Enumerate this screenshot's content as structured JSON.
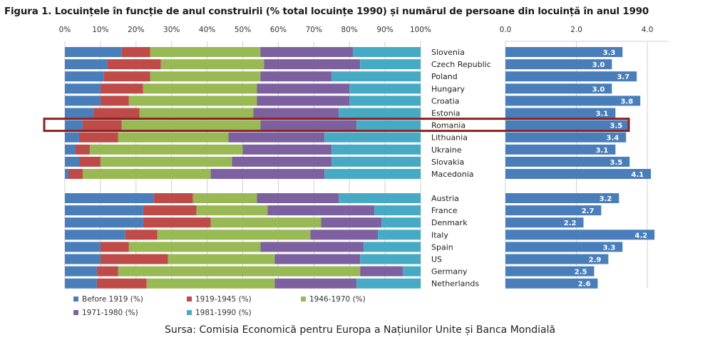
{
  "title": "Figura 1. Locuințele în funcție de anul construirii (% total locuințe 1990) și numărul de persoane din locuință în anul 1990",
  "source": "Sursa: Comisia Economică pentru Europa a Națiunilor Unite și Banca Mondială",
  "chart_data": [
    {
      "type": "bar",
      "orientation": "horizontal",
      "stacked": true,
      "title": "Locuințele în funcție de anul construirii (% total locuințe 1990)",
      "x_ticks": [
        "0%",
        "10%",
        "20%",
        "30%",
        "40%",
        "50%",
        "60%",
        "70%",
        "80%",
        "90%",
        "100%"
      ],
      "xlim": [
        0,
        100
      ],
      "grid": true,
      "categories": [
        "Slovenia",
        "Czech Republic",
        "Poland",
        "Hungary",
        "Croatia",
        "Estonia",
        "Romania",
        "Lithuania",
        "Ukraine",
        "Slovakia",
        "Macedonia",
        "Austria",
        "France",
        "Denmark",
        "Italy",
        "Spain",
        "US",
        "Germany",
        "Netherlands"
      ],
      "groups": [
        {
          "categories": [
            "Slovenia",
            "Czech Republic",
            "Poland",
            "Hungary",
            "Croatia",
            "Estonia",
            "Romania",
            "Lithuania",
            "Ukraine",
            "Slovakia",
            "Macedonia"
          ]
        },
        {
          "categories": [
            "Austria",
            "France",
            "Denmark",
            "Italy",
            "Spain",
            "US",
            "Germany",
            "Netherlands"
          ]
        }
      ],
      "highlight": "Romania",
      "series": [
        {
          "name": "Before 1919 (%)",
          "color": "#4a7ebb",
          "values": [
            16,
            12,
            11,
            10,
            10,
            8,
            5,
            4,
            3,
            4,
            1,
            25,
            22,
            22,
            17,
            10,
            10,
            9,
            9
          ]
        },
        {
          "name": "1919-1945 (%)",
          "color": "#be4b48",
          "values": [
            8,
            15,
            13,
            12,
            8,
            13,
            11,
            11,
            4,
            6,
            4,
            11,
            15,
            19,
            9,
            8,
            19,
            6,
            14
          ]
        },
        {
          "name": "1946-1970 (%)",
          "color": "#98b954",
          "values": [
            31,
            29,
            31,
            32,
            36,
            32,
            39,
            31,
            43,
            37,
            36,
            18,
            20,
            31,
            43,
            37,
            30,
            68,
            36
          ]
        },
        {
          "name": "1971-1980 (%)",
          "color": "#7d60a0",
          "values": [
            26,
            27,
            20,
            26,
            26,
            24,
            27,
            27,
            25,
            28,
            32,
            23,
            30,
            17,
            19,
            29,
            24,
            12,
            23
          ]
        },
        {
          "name": "1981-1990 (%)",
          "color": "#46aac5",
          "values": [
            19,
            17,
            25,
            20,
            20,
            23,
            18,
            27,
            25,
            25,
            27,
            23,
            13,
            11,
            12,
            16,
            17,
            5,
            18
          ]
        }
      ],
      "legend_position": "bottom-left"
    },
    {
      "type": "bar",
      "orientation": "horizontal",
      "title": "Numărul de persoane din locuință în anul 1990",
      "x_ticks": [
        "0.0",
        "2.0",
        "4.0"
      ],
      "xlim": [
        0,
        4.6
      ],
      "grid": true,
      "color": "#4a7ebb",
      "categories": [
        "Slovenia",
        "Czech Republic",
        "Poland",
        "Hungary",
        "Croatia",
        "Estonia",
        "Romania",
        "Lithuania",
        "Ukraine",
        "Slovakia",
        "Macedonia",
        "Austria",
        "France",
        "Denmark",
        "Italy",
        "Spain",
        "US",
        "Germany",
        "Netherlands"
      ],
      "values": [
        3.3,
        3.0,
        3.7,
        3.0,
        3.8,
        3.1,
        3.5,
        3.4,
        3.1,
        3.5,
        4.1,
        3.2,
        2.7,
        2.2,
        4.2,
        3.3,
        2.9,
        2.5,
        2.6
      ],
      "labels": [
        "3.3",
        "3.0",
        "3.7",
        "3.0",
        "3.8",
        "3.1",
        "3.5",
        "3.4",
        "3.1",
        "3.5",
        "4.1",
        "3.2",
        "2.7",
        "2.2",
        "4.2",
        "3.3",
        "2.9",
        "2.5",
        "2.6"
      ]
    }
  ]
}
